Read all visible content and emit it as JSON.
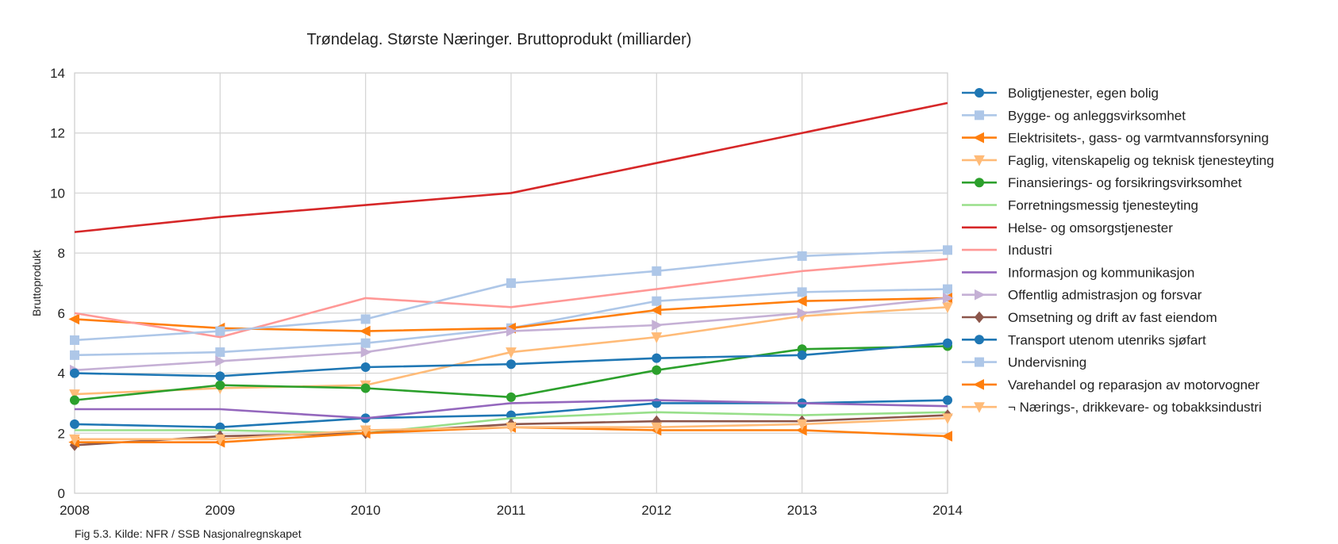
{
  "chart_data": {
    "type": "line",
    "title": "Trøndelag. Største Næringer. Bruttoprodukt (milliarder)",
    "xlabel": "",
    "ylabel": "Bruttoprodukt",
    "x": [
      2008,
      2009,
      2010,
      2011,
      2012,
      2013,
      2014
    ],
    "x_tick_labels": [
      "2008",
      "2009",
      "2010",
      "2011",
      "2012",
      "2013",
      "2014"
    ],
    "ylim": [
      0,
      14
    ],
    "y_ticks": [
      0,
      2,
      4,
      6,
      8,
      10,
      12,
      14
    ],
    "y_tick_labels": [
      "0",
      "2",
      "4",
      "6",
      "8",
      "10",
      "12",
      "14"
    ],
    "grid": true,
    "legend_position": "right",
    "caption": "Fig 5.3. Kilde: NFR / SSB Nasjonalregnskapet",
    "series": [
      {
        "name": "Boligtjenester, egen bolig",
        "color": "#1f77b4",
        "marker": "circle",
        "values": [
          2.3,
          2.2,
          2.5,
          2.6,
          3.0,
          3.0,
          3.1
        ]
      },
      {
        "name": "Bygge- og anleggsvirksomhet",
        "color": "#aec7e8",
        "marker": "square",
        "values": [
          4.6,
          4.7,
          5.0,
          5.5,
          6.4,
          6.7,
          6.8
        ]
      },
      {
        "name": "Elektrisitets-, gass- og varmtvannsforsyning",
        "color": "#ff7f0e",
        "marker": "triangle-left",
        "values": [
          5.8,
          5.5,
          5.4,
          5.5,
          6.1,
          6.4,
          6.5
        ]
      },
      {
        "name": "Faglig, vitenskapelig og teknisk tjenesteyting",
        "color": "#ffbb78",
        "marker": "triangle-down",
        "values": [
          3.3,
          3.5,
          3.6,
          4.7,
          5.2,
          5.9,
          6.2
        ]
      },
      {
        "name": "Finansierings- og forsikringsvirksomhet",
        "color": "#2ca02c",
        "marker": "circle",
        "values": [
          3.1,
          3.6,
          3.5,
          3.2,
          4.1,
          4.8,
          4.9
        ]
      },
      {
        "name": "Forretningsmessig tjenesteyting",
        "color": "#98df8a",
        "marker": "none",
        "values": [
          2.1,
          2.1,
          2.0,
          2.5,
          2.7,
          2.6,
          2.7
        ]
      },
      {
        "name": "Helse- og omsorgstjenester",
        "color": "#d62728",
        "marker": "none",
        "values": [
          8.7,
          9.2,
          9.6,
          10.0,
          11.0,
          12.0,
          13.0
        ]
      },
      {
        "name": "Industri",
        "color": "#ff9896",
        "marker": "none",
        "values": [
          6.0,
          5.2,
          6.5,
          6.2,
          6.8,
          7.4,
          7.8
        ]
      },
      {
        "name": "Informasjon og kommunikasjon",
        "color": "#9467bd",
        "marker": "none",
        "values": [
          2.8,
          2.8,
          2.5,
          3.0,
          3.1,
          3.0,
          2.9
        ]
      },
      {
        "name": "Offentlig admistrasjon og forsvar",
        "color": "#c5b0d5",
        "marker": "triangle-right",
        "values": [
          4.1,
          4.4,
          4.7,
          5.4,
          5.6,
          6.0,
          6.5
        ]
      },
      {
        "name": "Omsetning og drift av fast eiendom",
        "color": "#8c564b",
        "marker": "diamond",
        "values": [
          1.6,
          1.9,
          2.0,
          2.3,
          2.4,
          2.4,
          2.6
        ]
      },
      {
        "name": "Transport utenom utenriks sjøfart",
        "color": "#1f77b4",
        "marker": "circle",
        "values": [
          4.0,
          3.9,
          4.2,
          4.3,
          4.5,
          4.6,
          5.0
        ]
      },
      {
        "name": "Undervisning",
        "color": "#aec7e8",
        "marker": "square",
        "values": [
          5.1,
          5.4,
          5.8,
          7.0,
          7.4,
          7.9,
          8.1
        ]
      },
      {
        "name": "Varehandel og reparasjon av motorvogner",
        "color": "#ff7f0e",
        "marker": "triangle-left",
        "values": [
          1.7,
          1.7,
          2.0,
          2.2,
          2.1,
          2.1,
          1.9
        ]
      },
      {
        "name": "¬ Nærings-, drikkevare- og tobakksindustri",
        "color": "#ffbb78",
        "marker": "triangle-down",
        "values": [
          1.8,
          1.8,
          2.1,
          2.2,
          2.2,
          2.3,
          2.5
        ]
      }
    ]
  }
}
